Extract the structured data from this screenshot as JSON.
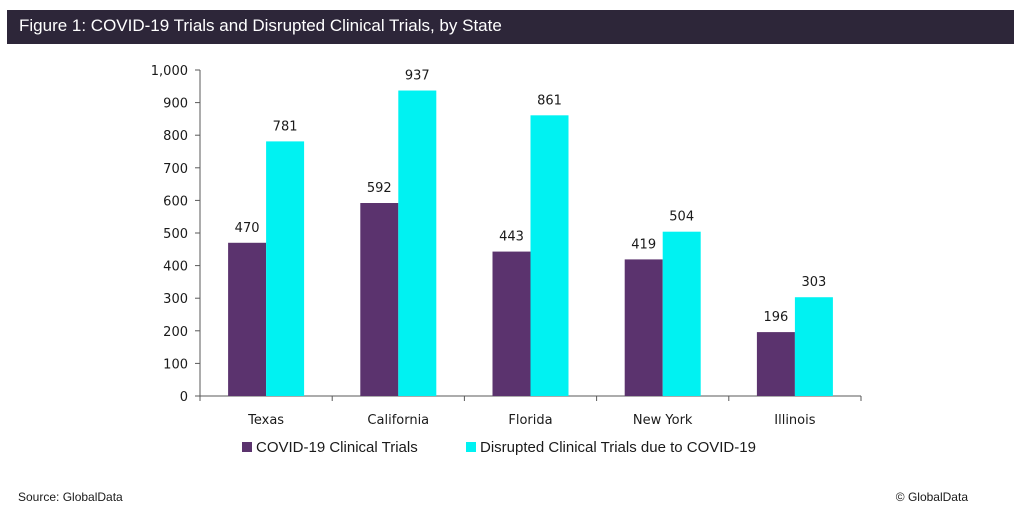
{
  "header": {
    "title": "Figure 1: COVID-19 Trials and Disrupted Clinical Trials, by State"
  },
  "footer": {
    "source": "Source: GlobalData",
    "copyright": "© GlobalData"
  },
  "chart_data": {
    "type": "bar",
    "title": "Figure 1: COVID-19 Trials and Disrupted Clinical Trials, by State",
    "xlabel": "",
    "ylabel": "",
    "categories": [
      "Texas",
      "California",
      "Florida",
      "New York",
      "Illinois"
    ],
    "series": [
      {
        "name": "COVID-19 Clinical Trials",
        "color": "#5b336e",
        "values": [
          470,
          592,
          443,
          419,
          196
        ]
      },
      {
        "name": "Disrupted Clinical Trials due to COVID-19",
        "color": "#00f2f2",
        "values": [
          781,
          937,
          861,
          504,
          303
        ]
      }
    ],
    "ylim": [
      0,
      1000
    ],
    "yticks": [
      0,
      100,
      200,
      300,
      400,
      500,
      600,
      700,
      800,
      900,
      1000
    ],
    "ytick_labels": [
      "0",
      "100",
      "200",
      "300",
      "400",
      "500",
      "600",
      "700",
      "800",
      "900",
      "1,000"
    ],
    "grid": false,
    "data_labels": true,
    "legend_position": "bottom"
  }
}
